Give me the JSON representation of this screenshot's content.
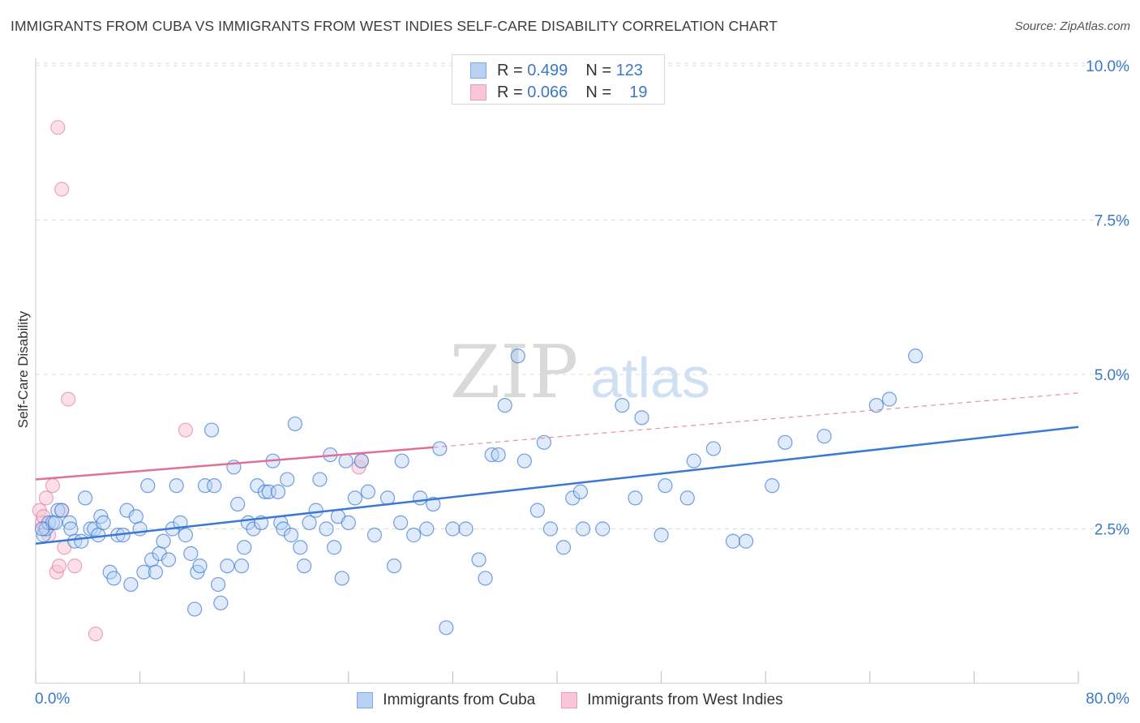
{
  "header": {
    "title": "IMMIGRANTS FROM CUBA VS IMMIGRANTS FROM WEST INDIES SELF-CARE DISABILITY CORRELATION CHART",
    "source": "Source: ZipAtlas.com"
  },
  "watermark": {
    "zip": "ZIP",
    "atlas": "atlas"
  },
  "legend_top": {
    "rows": [
      {
        "r_label": "R =",
        "r_value": "0.499",
        "n_label": "N =",
        "n_value": "123"
      },
      {
        "r_label": "R =",
        "r_value": "0.066",
        "n_label": "N =",
        "n_value": "19"
      }
    ]
  },
  "colors": {
    "cuba": "#3a78d4",
    "cuba_fill": "#b9d2f3",
    "west_indies": "#e0709a",
    "west_indies_fill": "#f8c6d6",
    "grid": "#dcdcdc",
    "axis_label": "#3b78c9"
  },
  "chart_data": {
    "type": "scatter",
    "title": "IMMIGRANTS FROM CUBA VS IMMIGRANTS FROM WEST INDIES SELF-CARE DISABILITY CORRELATION CHART",
    "xlabel": "",
    "ylabel": "Self-Care Disability",
    "xlim": [
      0,
      80
    ],
    "ylim": [
      0,
      10.2
    ],
    "x_tick_labels": [
      "0.0%",
      "80.0%"
    ],
    "y_ticks": [
      2.5,
      5.0,
      7.5,
      10.0
    ],
    "y_tick_labels": [
      "2.5%",
      "5.0%",
      "7.5%",
      "10.0%"
    ],
    "legend": [
      "Immigrants from Cuba",
      "Immigrants from West Indies"
    ],
    "series": [
      {
        "name": "Immigrants from Cuba",
        "r": 0.499,
        "n": 123,
        "trend": {
          "x0": 0,
          "y0": 2.26,
          "x1": 80,
          "y1": 4.15,
          "style": "solid"
        },
        "points": [
          [
            0.6,
            2.4
          ],
          [
            0.8,
            2.5
          ],
          [
            1.0,
            2.6
          ],
          [
            1.3,
            2.6
          ],
          [
            1.5,
            2.6
          ],
          [
            1.7,
            2.8
          ],
          [
            2.0,
            2.8
          ],
          [
            2.6,
            2.6
          ],
          [
            2.7,
            2.5
          ],
          [
            3.0,
            2.3
          ],
          [
            3.5,
            2.3
          ],
          [
            3.8,
            3.0
          ],
          [
            4.2,
            2.5
          ],
          [
            4.5,
            2.5
          ],
          [
            4.8,
            2.4
          ],
          [
            5.0,
            2.7
          ],
          [
            5.2,
            2.6
          ],
          [
            5.7,
            1.8
          ],
          [
            6.0,
            1.7
          ],
          [
            6.3,
            2.4
          ],
          [
            6.7,
            2.4
          ],
          [
            7.0,
            2.8
          ],
          [
            7.3,
            1.6
          ],
          [
            7.7,
            2.7
          ],
          [
            8.0,
            2.5
          ],
          [
            8.3,
            1.8
          ],
          [
            8.6,
            3.2
          ],
          [
            8.9,
            2.0
          ],
          [
            9.2,
            1.8
          ],
          [
            9.5,
            2.1
          ],
          [
            9.8,
            2.3
          ],
          [
            10.2,
            2.0
          ],
          [
            10.5,
            2.5
          ],
          [
            10.8,
            3.2
          ],
          [
            11.1,
            2.6
          ],
          [
            11.5,
            2.4
          ],
          [
            11.9,
            2.1
          ],
          [
            12.2,
            1.2
          ],
          [
            12.4,
            1.8
          ],
          [
            12.6,
            1.9
          ],
          [
            13.0,
            3.2
          ],
          [
            13.5,
            4.1
          ],
          [
            13.7,
            3.2
          ],
          [
            14.0,
            1.6
          ],
          [
            14.2,
            1.3
          ],
          [
            14.7,
            1.9
          ],
          [
            15.2,
            3.5
          ],
          [
            15.5,
            2.9
          ],
          [
            15.8,
            1.9
          ],
          [
            16.0,
            2.2
          ],
          [
            16.3,
            2.6
          ],
          [
            16.7,
            2.5
          ],
          [
            17.0,
            3.2
          ],
          [
            17.3,
            2.6
          ],
          [
            17.6,
            3.1
          ],
          [
            17.9,
            3.1
          ],
          [
            18.2,
            3.6
          ],
          [
            18.6,
            3.1
          ],
          [
            18.8,
            2.6
          ],
          [
            19.0,
            2.5
          ],
          [
            19.3,
            3.3
          ],
          [
            19.6,
            2.4
          ],
          [
            19.9,
            4.2
          ],
          [
            20.3,
            2.2
          ],
          [
            20.6,
            1.9
          ],
          [
            21.0,
            2.6
          ],
          [
            21.5,
            2.8
          ],
          [
            21.8,
            3.3
          ],
          [
            22.3,
            2.5
          ],
          [
            22.6,
            3.7
          ],
          [
            22.9,
            2.2
          ],
          [
            23.2,
            2.7
          ],
          [
            23.5,
            1.7
          ],
          [
            23.8,
            3.6
          ],
          [
            24.0,
            2.6
          ],
          [
            24.5,
            3.0
          ],
          [
            25.0,
            3.6
          ],
          [
            25.5,
            3.1
          ],
          [
            26.0,
            2.4
          ],
          [
            27.0,
            3.0
          ],
          [
            27.5,
            1.9
          ],
          [
            28.0,
            2.6
          ],
          [
            28.1,
            3.6
          ],
          [
            29.0,
            2.4
          ],
          [
            29.5,
            3.0
          ],
          [
            30.0,
            2.5
          ],
          [
            30.5,
            2.9
          ],
          [
            31.0,
            3.8
          ],
          [
            31.5,
            0.9
          ],
          [
            32.0,
            2.5
          ],
          [
            33.0,
            2.5
          ],
          [
            34.0,
            2.0
          ],
          [
            34.5,
            1.7
          ],
          [
            35.0,
            3.7
          ],
          [
            35.5,
            3.7
          ],
          [
            36.0,
            4.5
          ],
          [
            37.0,
            5.3
          ],
          [
            37.5,
            3.6
          ],
          [
            38.5,
            2.8
          ],
          [
            39.0,
            3.9
          ],
          [
            39.5,
            2.5
          ],
          [
            40.5,
            2.2
          ],
          [
            41.2,
            3.0
          ],
          [
            41.8,
            3.1
          ],
          [
            42.0,
            2.5
          ],
          [
            43.5,
            2.5
          ],
          [
            45.0,
            4.5
          ],
          [
            46.0,
            3.0
          ],
          [
            46.5,
            4.3
          ],
          [
            48.0,
            2.4
          ],
          [
            48.3,
            3.2
          ],
          [
            50.0,
            3.0
          ],
          [
            50.5,
            3.6
          ],
          [
            52.0,
            3.8
          ],
          [
            53.5,
            2.3
          ],
          [
            54.5,
            2.3
          ],
          [
            56.5,
            3.2
          ],
          [
            57.5,
            3.9
          ],
          [
            60.5,
            4.0
          ],
          [
            64.5,
            4.5
          ],
          [
            65.5,
            4.6
          ],
          [
            67.5,
            5.3
          ],
          [
            0.5,
            2.5
          ]
        ]
      },
      {
        "name": "Immigrants from West Indies",
        "r": 0.066,
        "n": 19,
        "trend_solid": {
          "x0": 0,
          "y0": 3.3,
          "x1": 30.5,
          "y1": 3.82,
          "style": "solid"
        },
        "trend_dashed": {
          "x0": 30.5,
          "y0": 3.82,
          "x1": 80,
          "y1": 4.7,
          "style": "dashed"
        },
        "points": [
          [
            0.3,
            2.8
          ],
          [
            0.5,
            2.6
          ],
          [
            0.6,
            2.7
          ],
          [
            0.7,
            2.5
          ],
          [
            0.8,
            3.0
          ],
          [
            1.0,
            2.4
          ],
          [
            1.3,
            3.2
          ],
          [
            1.6,
            1.8
          ],
          [
            1.8,
            1.9
          ],
          [
            2.0,
            2.8
          ],
          [
            2.2,
            2.2
          ],
          [
            3.0,
            1.9
          ],
          [
            1.7,
            9.0
          ],
          [
            2.0,
            8.0
          ],
          [
            2.5,
            4.6
          ],
          [
            4.6,
            0.8
          ],
          [
            11.5,
            4.1
          ],
          [
            24.8,
            3.5
          ],
          [
            25.0,
            3.6
          ]
        ]
      }
    ]
  }
}
